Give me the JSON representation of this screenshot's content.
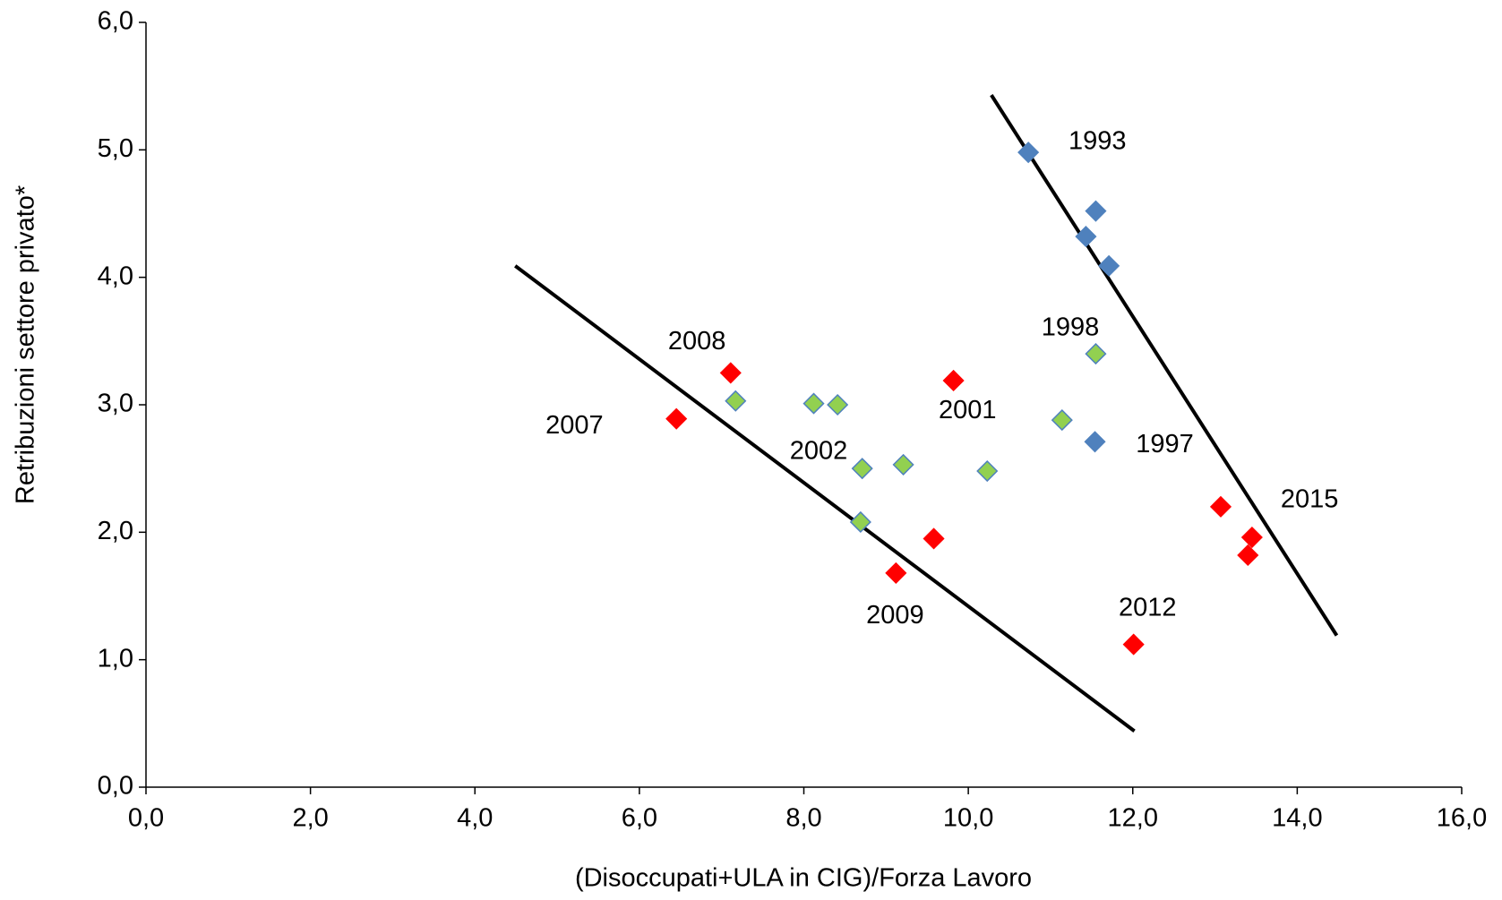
{
  "chart_data": {
    "type": "scatter",
    "x_label": "(Disoccupati+ULA in CIG)/Forza Lavoro",
    "y_label": "Retribuzioni settore privato*",
    "xlim": [
      0,
      16
    ],
    "ylim": [
      0,
      6
    ],
    "xticks": [
      {
        "value": 0,
        "label": "0,0"
      },
      {
        "value": 2,
        "label": "2,0"
      },
      {
        "value": 4,
        "label": "4,0"
      },
      {
        "value": 6,
        "label": "6,0"
      },
      {
        "value": 8,
        "label": "8,0"
      },
      {
        "value": 10,
        "label": "10,0"
      },
      {
        "value": 12,
        "label": "12,0"
      },
      {
        "value": 14,
        "label": "14,0"
      },
      {
        "value": 16,
        "label": "16,0"
      }
    ],
    "yticks": [
      {
        "value": 0,
        "label": "0,0"
      },
      {
        "value": 1,
        "label": "1,0"
      },
      {
        "value": 2,
        "label": "2,0"
      },
      {
        "value": 3,
        "label": "3,0"
      },
      {
        "value": 4,
        "label": "4,0"
      },
      {
        "value": 5,
        "label": "5,0"
      },
      {
        "value": 6,
        "label": "6,0"
      }
    ],
    "marker": "diamond",
    "series": [
      {
        "color": "#4f81bd",
        "edge_color": "#4f81bd",
        "x": [
          10.73,
          11.55,
          11.43,
          11.71,
          11.54
        ],
        "values": [
          4.98,
          4.52,
          4.32,
          4.09,
          2.71
        ]
      },
      {
        "color": "#92d050",
        "edge_color": "#4f81bd",
        "x": [
          11.55,
          11.14,
          10.23,
          9.21,
          8.71,
          8.69,
          8.41,
          8.12,
          7.17
        ],
        "values": [
          3.4,
          2.88,
          2.48,
          2.53,
          2.5,
          2.08,
          3.0,
          3.01,
          3.03
        ]
      },
      {
        "color": "#ff0000",
        "edge_color": "#ff0000",
        "x": [
          6.45,
          7.11,
          9.12,
          9.58,
          9.82,
          12.01,
          13.07,
          13.4,
          13.45
        ],
        "values": [
          2.89,
          3.25,
          1.68,
          1.95,
          3.19,
          1.12,
          2.2,
          1.82,
          1.96
        ]
      }
    ],
    "trend_lines": [
      {
        "color": "#000000",
        "x": [
          4.49,
          12.02
        ],
        "values": [
          4.09,
          0.44
        ]
      },
      {
        "color": "#000000",
        "x": [
          10.28,
          14.48
        ],
        "values": [
          5.43,
          1.19
        ]
      }
    ],
    "annotations": [
      "1993",
      "1997",
      "1998",
      "2001",
      "2002",
      "2007",
      "2008",
      "2009",
      "2012",
      "2015"
    ]
  }
}
